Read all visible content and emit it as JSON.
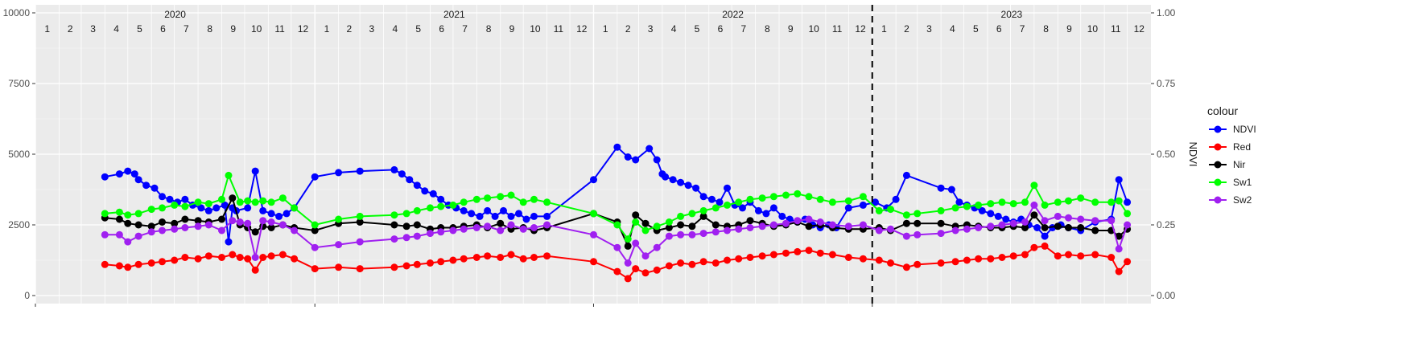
{
  "chart_data": {
    "type": "line",
    "x_range": [
      "2020-01-01",
      "2024-01-01"
    ],
    "ylim": [
      0,
      10000
    ],
    "y_ticks": [
      0,
      2500,
      5000,
      7500,
      10000
    ],
    "y_tick_labels": [
      "0",
      "2500",
      "5000",
      "7500",
      "10000"
    ],
    "y2lim": [
      0,
      1
    ],
    "y2_ticks": [
      0,
      0.25,
      0.5,
      0.75,
      1
    ],
    "y2_tick_labels": [
      "0.00",
      "0.25",
      "0.50",
      "0.75",
      "1.00"
    ],
    "y2label": "NDVI",
    "years": [
      "2020",
      "2021",
      "2022",
      "2023"
    ],
    "month_labels": [
      "1",
      "2",
      "3",
      "4",
      "5",
      "6",
      "7",
      "8",
      "9",
      "10",
      "11",
      "12"
    ],
    "vline_date": "2023-01-01",
    "legend_title": "colour",
    "legend_position": "right",
    "grid": true,
    "series": [
      {
        "name": "NDVI",
        "axis": "right",
        "color": "#0000ff",
        "x": [
          "2020-04-01",
          "2020-04-20",
          "2020-05-01",
          "2020-05-10",
          "2020-05-15",
          "2020-05-25",
          "2020-06-05",
          "2020-06-15",
          "2020-06-25",
          "2020-07-05",
          "2020-07-15",
          "2020-07-25",
          "2020-08-05",
          "2020-08-15",
          "2020-08-25",
          "2020-09-05",
          "2020-09-10",
          "2020-09-15",
          "2020-09-20",
          "2020-10-05",
          "2020-10-15",
          "2020-10-25",
          "2020-11-05",
          "2020-11-15",
          "2020-11-25",
          "2020-12-05",
          "2021-01-01",
          "2021-02-01",
          "2021-03-01",
          "2021-04-15",
          "2021-04-25",
          "2021-05-05",
          "2021-05-15",
          "2021-05-25",
          "2021-06-05",
          "2021-06-15",
          "2021-06-25",
          "2021-07-05",
          "2021-07-15",
          "2021-07-25",
          "2021-08-05",
          "2021-08-15",
          "2021-08-25",
          "2021-09-05",
          "2021-09-15",
          "2021-09-25",
          "2021-10-05",
          "2021-10-15",
          "2021-11-01",
          "2022-01-01",
          "2022-02-01",
          "2022-02-15",
          "2022-02-25",
          "2022-03-15",
          "2022-03-25",
          "2022-04-01",
          "2022-04-05",
          "2022-04-15",
          "2022-04-25",
          "2022-05-05",
          "2022-05-15",
          "2022-05-25",
          "2022-06-05",
          "2022-06-15",
          "2022-06-25",
          "2022-07-05",
          "2022-07-15",
          "2022-07-25",
          "2022-08-05",
          "2022-08-15",
          "2022-08-25",
          "2022-09-05",
          "2022-09-15",
          "2022-09-25",
          "2022-10-05",
          "2022-10-15",
          "2022-10-25",
          "2022-11-05",
          "2022-11-15",
          "2022-12-01",
          "2022-12-20",
          "2023-01-05",
          "2023-01-20",
          "2023-02-01",
          "2023-02-15",
          "2023-04-01",
          "2023-04-15",
          "2023-04-25",
          "2023-05-05",
          "2023-05-15",
          "2023-05-25",
          "2023-06-05",
          "2023-06-15",
          "2023-06-25",
          "2023-07-05",
          "2023-07-15",
          "2023-07-25",
          "2023-08-05",
          "2023-08-15",
          "2023-08-25",
          "2023-09-05",
          "2023-09-15",
          "2023-10-01",
          "2023-10-20",
          "2023-11-10",
          "2023-11-20",
          "2023-12-01"
        ],
        "values": [
          0.42,
          0.43,
          0.44,
          0.43,
          0.41,
          0.39,
          0.38,
          0.35,
          0.34,
          0.33,
          0.34,
          0.32,
          0.31,
          0.3,
          0.31,
          0.32,
          0.19,
          0.31,
          0.3,
          0.31,
          0.44,
          0.3,
          0.29,
          0.28,
          0.29,
          0.31,
          0.42,
          0.435,
          0.44,
          0.445,
          0.43,
          0.41,
          0.39,
          0.37,
          0.36,
          0.34,
          0.32,
          0.31,
          0.3,
          0.29,
          0.28,
          0.3,
          0.28,
          0.3,
          0.28,
          0.29,
          0.27,
          0.28,
          0.28,
          0.41,
          0.525,
          0.49,
          0.48,
          0.52,
          0.48,
          0.43,
          0.42,
          0.41,
          0.4,
          0.39,
          0.38,
          0.35,
          0.34,
          0.33,
          0.38,
          0.32,
          0.31,
          0.33,
          0.3,
          0.29,
          0.31,
          0.28,
          0.27,
          0.26,
          0.27,
          0.25,
          0.24,
          0.25,
          0.24,
          0.31,
          0.32,
          0.33,
          0.31,
          0.34,
          0.425,
          0.38,
          0.375,
          0.33,
          0.32,
          0.31,
          0.3,
          0.29,
          0.28,
          0.27,
          0.26,
          0.27,
          0.25,
          0.24,
          0.21,
          0.24,
          0.25,
          0.24,
          0.23,
          0.26,
          0.27,
          0.41,
          0.33
        ]
      },
      {
        "name": "Red",
        "axis": "left",
        "color": "#ff0000",
        "x": [
          "2020-04-01",
          "2020-04-20",
          "2020-05-01",
          "2020-05-15",
          "2020-06-01",
          "2020-06-15",
          "2020-07-01",
          "2020-07-15",
          "2020-08-01",
          "2020-08-15",
          "2020-09-01",
          "2020-09-15",
          "2020-09-25",
          "2020-10-05",
          "2020-10-15",
          "2020-10-25",
          "2020-11-05",
          "2020-11-20",
          "2020-12-05",
          "2021-01-01",
          "2021-02-01",
          "2021-03-01",
          "2021-04-15",
          "2021-05-01",
          "2021-05-15",
          "2021-06-01",
          "2021-06-15",
          "2021-07-01",
          "2021-07-15",
          "2021-08-01",
          "2021-08-15",
          "2021-09-01",
          "2021-09-15",
          "2021-10-01",
          "2021-10-15",
          "2021-11-01",
          "2022-01-01",
          "2022-02-01",
          "2022-02-15",
          "2022-02-25",
          "2022-03-10",
          "2022-03-25",
          "2022-04-10",
          "2022-04-25",
          "2022-05-10",
          "2022-05-25",
          "2022-06-10",
          "2022-06-25",
          "2022-07-10",
          "2022-07-25",
          "2022-08-10",
          "2022-08-25",
          "2022-09-10",
          "2022-09-25",
          "2022-10-10",
          "2022-10-25",
          "2022-11-10",
          "2022-12-01",
          "2022-12-20",
          "2023-01-10",
          "2023-01-25",
          "2023-02-15",
          "2023-03-01",
          "2023-04-01",
          "2023-04-20",
          "2023-05-05",
          "2023-05-20",
          "2023-06-05",
          "2023-06-20",
          "2023-07-05",
          "2023-07-20",
          "2023-08-01",
          "2023-08-15",
          "2023-09-01",
          "2023-09-15",
          "2023-10-01",
          "2023-10-20",
          "2023-11-10",
          "2023-11-20",
          "2023-12-01"
        ],
        "values": [
          1100,
          1050,
          1000,
          1100,
          1150,
          1200,
          1250,
          1350,
          1300,
          1400,
          1350,
          1450,
          1350,
          1300,
          900,
          1350,
          1400,
          1450,
          1300,
          950,
          1000,
          950,
          1000,
          1050,
          1100,
          1150,
          1200,
          1250,
          1300,
          1350,
          1400,
          1350,
          1450,
          1300,
          1350,
          1400,
          1200,
          850,
          600,
          950,
          800,
          900,
          1050,
          1150,
          1100,
          1200,
          1150,
          1250,
          1300,
          1350,
          1400,
          1450,
          1500,
          1550,
          1600,
          1500,
          1450,
          1350,
          1300,
          1250,
          1150,
          1000,
          1100,
          1150,
          1200,
          1250,
          1300,
          1300,
          1350,
          1400,
          1450,
          1700,
          1750,
          1400,
          1450,
          1400,
          1450,
          1350,
          850,
          1200
        ]
      },
      {
        "name": "Nir",
        "axis": "left",
        "color": "#000000",
        "x": [
          "2020-04-01",
          "2020-04-20",
          "2020-05-01",
          "2020-05-15",
          "2020-06-01",
          "2020-06-15",
          "2020-07-01",
          "2020-07-15",
          "2020-08-01",
          "2020-08-15",
          "2020-09-01",
          "2020-09-15",
          "2020-09-25",
          "2020-10-05",
          "2020-10-15",
          "2020-10-25",
          "2020-11-05",
          "2020-11-20",
          "2020-12-05",
          "2021-01-01",
          "2021-02-01",
          "2021-03-01",
          "2021-04-15",
          "2021-05-01",
          "2021-05-15",
          "2021-06-01",
          "2021-06-15",
          "2021-07-01",
          "2021-07-15",
          "2021-08-01",
          "2021-08-15",
          "2021-09-01",
          "2021-09-15",
          "2021-10-01",
          "2021-10-15",
          "2021-11-01",
          "2022-01-01",
          "2022-02-01",
          "2022-02-15",
          "2022-02-25",
          "2022-03-10",
          "2022-03-25",
          "2022-04-10",
          "2022-04-25",
          "2022-05-10",
          "2022-05-25",
          "2022-06-10",
          "2022-06-25",
          "2022-07-10",
          "2022-07-25",
          "2022-08-10",
          "2022-08-25",
          "2022-09-10",
          "2022-09-25",
          "2022-10-10",
          "2022-10-25",
          "2022-11-10",
          "2022-12-01",
          "2022-12-20",
          "2023-01-10",
          "2023-01-25",
          "2023-02-15",
          "2023-03-01",
          "2023-04-01",
          "2023-04-20",
          "2023-05-05",
          "2023-05-20",
          "2023-06-05",
          "2023-06-20",
          "2023-07-05",
          "2023-07-20",
          "2023-08-01",
          "2023-08-15",
          "2023-09-01",
          "2023-09-15",
          "2023-10-01",
          "2023-10-20",
          "2023-11-10",
          "2023-11-20",
          "2023-12-01"
        ],
        "values": [
          2750,
          2700,
          2550,
          2500,
          2450,
          2600,
          2550,
          2700,
          2650,
          2600,
          2700,
          3450,
          2500,
          2400,
          2250,
          2450,
          2400,
          2500,
          2400,
          2300,
          2550,
          2600,
          2500,
          2450,
          2500,
          2350,
          2400,
          2400,
          2450,
          2500,
          2400,
          2550,
          2350,
          2400,
          2300,
          2400,
          2900,
          2600,
          1750,
          2850,
          2550,
          2300,
          2400,
          2500,
          2450,
          2800,
          2500,
          2450,
          2500,
          2650,
          2550,
          2450,
          2500,
          2600,
          2450,
          2500,
          2400,
          2350,
          2350,
          2400,
          2300,
          2550,
          2550,
          2550,
          2450,
          2500,
          2450,
          2400,
          2400,
          2450,
          2400,
          2850,
          2400,
          2450,
          2400,
          2400,
          2300,
          2300,
          2100,
          2350
        ]
      },
      {
        "name": "Sw1",
        "axis": "left",
        "color": "#00ff00",
        "x": [
          "2020-04-01",
          "2020-04-20",
          "2020-05-01",
          "2020-05-15",
          "2020-06-01",
          "2020-06-15",
          "2020-07-01",
          "2020-07-15",
          "2020-08-01",
          "2020-08-15",
          "2020-09-01",
          "2020-09-10",
          "2020-09-25",
          "2020-10-05",
          "2020-10-15",
          "2020-10-25",
          "2020-11-05",
          "2020-11-20",
          "2020-12-05",
          "2021-01-01",
          "2021-02-01",
          "2021-03-01",
          "2021-04-15",
          "2021-05-01",
          "2021-05-15",
          "2021-06-01",
          "2021-06-15",
          "2021-07-01",
          "2021-07-15",
          "2021-08-01",
          "2021-08-15",
          "2021-09-01",
          "2021-09-15",
          "2021-10-01",
          "2021-10-15",
          "2021-11-01",
          "2022-01-01",
          "2022-02-01",
          "2022-02-15",
          "2022-02-25",
          "2022-03-10",
          "2022-03-25",
          "2022-04-10",
          "2022-04-25",
          "2022-05-10",
          "2022-05-25",
          "2022-06-10",
          "2022-06-25",
          "2022-07-10",
          "2022-07-25",
          "2022-08-10",
          "2022-08-25",
          "2022-09-10",
          "2022-09-25",
          "2022-10-10",
          "2022-10-25",
          "2022-11-10",
          "2022-12-01",
          "2022-12-20",
          "2023-01-10",
          "2023-01-25",
          "2023-02-15",
          "2023-03-01",
          "2023-04-01",
          "2023-04-20",
          "2023-05-05",
          "2023-05-20",
          "2023-06-05",
          "2023-06-20",
          "2023-07-05",
          "2023-07-20",
          "2023-08-01",
          "2023-08-15",
          "2023-09-01",
          "2023-09-15",
          "2023-10-01",
          "2023-10-20",
          "2023-11-10",
          "2023-11-20",
          "2023-12-01"
        ],
        "values": [
          2900,
          2950,
          2850,
          2900,
          3050,
          3100,
          3200,
          3150,
          3300,
          3250,
          3400,
          4250,
          3300,
          3350,
          3300,
          3350,
          3300,
          3450,
          3100,
          2500,
          2700,
          2800,
          2850,
          2900,
          3000,
          3100,
          3150,
          3200,
          3300,
          3400,
          3450,
          3500,
          3550,
          3300,
          3400,
          3300,
          2900,
          2500,
          2000,
          2600,
          2300,
          2450,
          2600,
          2800,
          2900,
          3000,
          3100,
          3200,
          3300,
          3400,
          3450,
          3500,
          3550,
          3600,
          3500,
          3400,
          3300,
          3350,
          3500,
          3000,
          3050,
          2850,
          2900,
          3000,
          3100,
          3150,
          3200,
          3250,
          3300,
          3250,
          3300,
          3900,
          3200,
          3300,
          3350,
          3450,
          3300,
          3300,
          3350,
          2900
        ]
      },
      {
        "name": "Sw2",
        "axis": "left",
        "color": "#a020f0",
        "x": [
          "2020-04-01",
          "2020-04-20",
          "2020-05-01",
          "2020-05-15",
          "2020-06-01",
          "2020-06-15",
          "2020-07-01",
          "2020-07-15",
          "2020-08-01",
          "2020-08-15",
          "2020-09-01",
          "2020-09-15",
          "2020-09-25",
          "2020-10-05",
          "2020-10-15",
          "2020-10-25",
          "2020-11-05",
          "2020-11-20",
          "2020-12-05",
          "2021-01-01",
          "2021-02-01",
          "2021-03-01",
          "2021-04-15",
          "2021-05-01",
          "2021-05-15",
          "2021-06-01",
          "2021-06-15",
          "2021-07-01",
          "2021-07-15",
          "2021-08-01",
          "2021-08-15",
          "2021-09-01",
          "2021-09-15",
          "2021-10-01",
          "2021-10-15",
          "2021-11-01",
          "2022-01-01",
          "2022-02-01",
          "2022-02-15",
          "2022-02-25",
          "2022-03-10",
          "2022-03-25",
          "2022-04-10",
          "2022-04-25",
          "2022-05-10",
          "2022-05-25",
          "2022-06-10",
          "2022-06-25",
          "2022-07-10",
          "2022-07-25",
          "2022-08-10",
          "2022-08-25",
          "2022-09-10",
          "2022-09-25",
          "2022-10-10",
          "2022-10-25",
          "2022-11-10",
          "2022-12-01",
          "2022-12-20",
          "2023-01-10",
          "2023-01-25",
          "2023-02-15",
          "2023-03-01",
          "2023-04-01",
          "2023-04-20",
          "2023-05-05",
          "2023-05-20",
          "2023-06-05",
          "2023-06-20",
          "2023-07-05",
          "2023-07-20",
          "2023-08-01",
          "2023-08-15",
          "2023-09-01",
          "2023-09-15",
          "2023-10-01",
          "2023-10-20",
          "2023-11-10",
          "2023-11-20",
          "2023-12-01"
        ],
        "values": [
          2150,
          2150,
          1900,
          2100,
          2250,
          2300,
          2350,
          2400,
          2450,
          2500,
          2300,
          2650,
          2600,
          2550,
          1350,
          2650,
          2600,
          2500,
          2300,
          1700,
          1800,
          1900,
          2000,
          2050,
          2100,
          2200,
          2250,
          2300,
          2350,
          2400,
          2450,
          2300,
          2500,
          2350,
          2400,
          2500,
          2150,
          1700,
          1150,
          1850,
          1400,
          1700,
          2100,
          2150,
          2150,
          2200,
          2250,
          2300,
          2350,
          2400,
          2450,
          2500,
          2550,
          2650,
          2700,
          2600,
          2500,
          2450,
          2500,
          2300,
          2350,
          2100,
          2150,
          2200,
          2300,
          2350,
          2400,
          2450,
          2500,
          2550,
          2600,
          3200,
          2650,
          2800,
          2750,
          2700,
          2650,
          2650,
          1650,
          2500
        ]
      }
    ]
  }
}
